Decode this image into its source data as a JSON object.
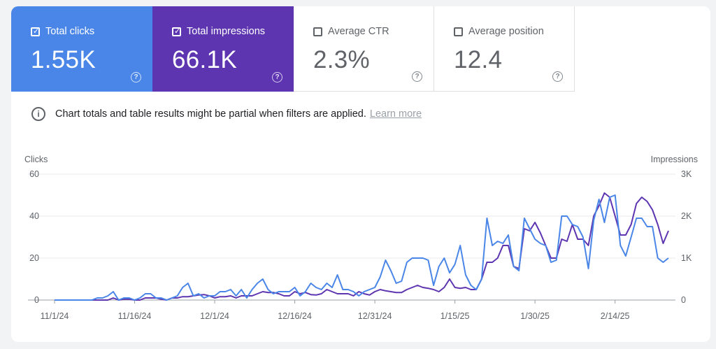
{
  "metrics": {
    "clicks": {
      "label": "Total clicks",
      "value": "1.55K",
      "checked": true,
      "color": "#4a86e8"
    },
    "impressions": {
      "label": "Total impressions",
      "value": "66.1K",
      "checked": true,
      "color": "#5e35b1"
    },
    "ctr": {
      "label": "Average CTR",
      "value": "2.3%",
      "checked": false
    },
    "position": {
      "label": "Average position",
      "value": "12.4",
      "checked": false
    }
  },
  "help_glyph": "?",
  "notice": {
    "icon": "i",
    "text": "Chart totals and table results might be partial when filters are applied.",
    "link": "Learn more"
  },
  "chart_data": {
    "type": "line",
    "left_axis_label": "Clicks",
    "right_axis_label": "Impressions",
    "left_ticks": [
      "0",
      "20",
      "40",
      "60"
    ],
    "right_ticks": [
      "0",
      "1K",
      "2K",
      "3K"
    ],
    "left_range": [
      0,
      60
    ],
    "right_range": [
      0,
      3000
    ],
    "x_labels": [
      "11/1/24",
      "11/16/24",
      "12/1/24",
      "12/16/24",
      "12/31/24",
      "1/15/25",
      "1/30/25",
      "2/14/25"
    ],
    "x_label_day_index": [
      0,
      15,
      30,
      45,
      60,
      75,
      90,
      105
    ],
    "grid": true,
    "series": [
      {
        "name": "Clicks",
        "axis": "left",
        "color": "#4a86e8",
        "values": [
          0,
          0,
          0,
          0,
          0,
          0,
          0,
          0,
          1,
          1,
          2,
          4,
          0,
          1,
          1,
          0,
          1,
          3,
          3,
          1,
          1,
          0,
          1,
          2,
          6,
          8,
          2,
          3,
          1,
          2,
          2,
          4,
          4,
          5,
          2,
          5,
          1,
          5,
          8,
          10,
          5,
          3,
          4,
          4,
          4,
          6,
          2,
          4,
          8,
          6,
          5,
          8,
          6,
          12,
          5,
          5,
          4,
          2,
          4,
          5,
          6,
          11,
          19,
          14,
          8,
          9,
          18,
          20,
          20,
          20,
          19,
          7,
          16,
          20,
          13,
          17,
          26,
          12,
          7,
          5,
          10,
          39,
          26,
          28,
          27,
          31,
          16,
          14,
          39,
          34,
          29,
          27,
          26,
          18,
          19,
          40,
          40,
          36,
          35,
          30,
          15,
          38,
          48,
          37,
          49,
          50,
          26,
          21,
          30,
          39,
          39,
          35,
          35,
          20,
          18,
          20
        ]
      },
      {
        "name": "Impressions",
        "axis": "right",
        "color": "#5e35b1",
        "values": [
          0,
          0,
          0,
          0,
          0,
          0,
          0,
          0,
          0,
          0,
          0,
          50,
          0,
          20,
          20,
          0,
          0,
          50,
          50,
          50,
          20,
          0,
          50,
          50,
          80,
          80,
          100,
          120,
          130,
          100,
          50,
          80,
          80,
          100,
          50,
          100,
          100,
          100,
          150,
          200,
          180,
          180,
          150,
          100,
          100,
          200,
          150,
          180,
          130,
          120,
          150,
          250,
          200,
          150,
          150,
          150,
          100,
          200,
          150,
          120,
          200,
          250,
          220,
          200,
          180,
          180,
          250,
          300,
          350,
          300,
          280,
          250,
          200,
          300,
          500,
          300,
          280,
          300,
          250,
          250,
          500,
          900,
          900,
          1000,
          1300,
          1300,
          800,
          750,
          1700,
          1650,
          1850,
          1600,
          1300,
          1000,
          1000,
          1450,
          1400,
          1800,
          1450,
          1450,
          1300,
          2000,
          2250,
          2550,
          2450,
          2000,
          1550,
          1550,
          1800,
          2300,
          2450,
          2350,
          2150,
          1800,
          1350,
          1650
        ]
      }
    ]
  }
}
